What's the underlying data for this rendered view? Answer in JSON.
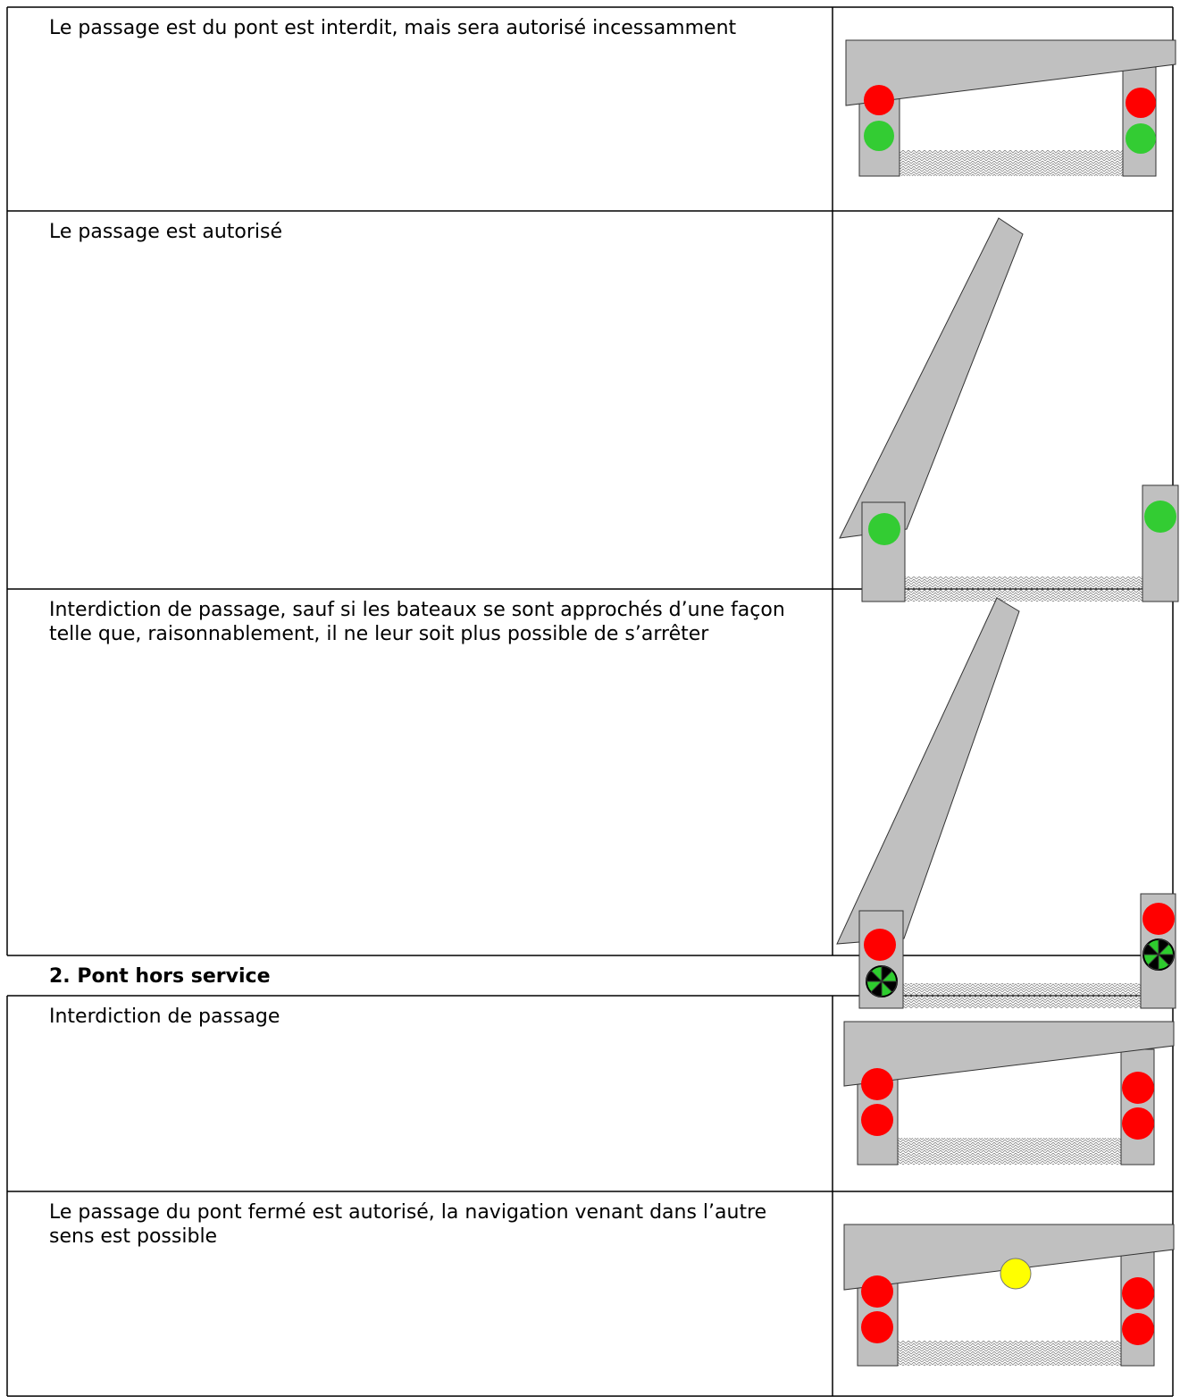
{
  "table_1": {
    "rows": [
      "Le passage est du pont est interdit, mais sera autorisé incessamment",
      "Le passage est autorisé",
      "Interdiction de passage, sauf si les bateaux se sont approchés d’une façon telle que, raisonnablement, il ne leur soit plus possible de s’arrêter"
    ]
  },
  "section_heading": "2. Pont hors service",
  "table_2": {
    "rows": [
      "Interdiction de passage",
      "Le passage du pont fermé est autorisé, la navigation venant dans l’autre sens est possible"
    ]
  }
}
